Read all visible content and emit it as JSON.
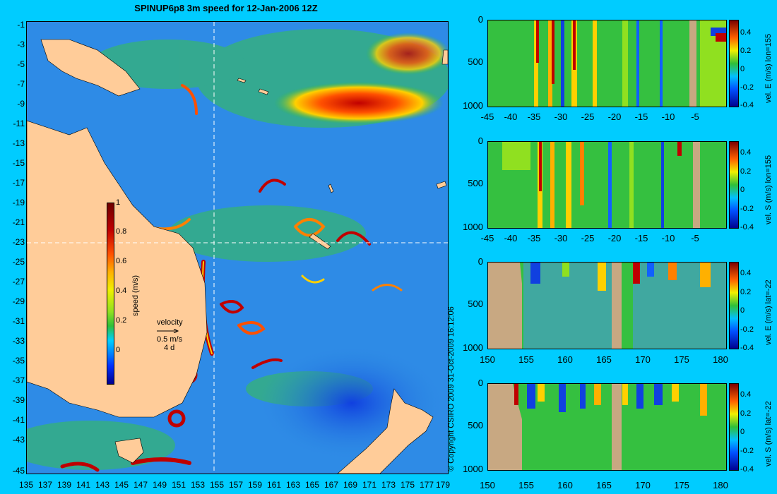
{
  "title": "SPINUP6p8 3m speed for 12-Jan-2006 12Z",
  "copyright": "© Copyright CSIRO 2009    31-Oct-2009 16:12:06",
  "map": {
    "lat_ticks": [
      "-1",
      "-3",
      "-5",
      "-7",
      "-9",
      "-11",
      "-13",
      "-15",
      "-17",
      "-19",
      "-21",
      "-23",
      "-25",
      "-27",
      "-29",
      "-31",
      "-33",
      "-35",
      "-37",
      "-39",
      "-41",
      "-43",
      "-45"
    ],
    "lon_ticks": [
      "135",
      "137",
      "139",
      "141",
      "143",
      "145",
      "147",
      "149",
      "151",
      "153",
      "155",
      "157",
      "159",
      "161",
      "163",
      "165",
      "167",
      "169",
      "171",
      "173",
      "175",
      "177",
      "179"
    ],
    "speed_colorbar": {
      "title": "speed (m/s)",
      "ticks": [
        "1",
        "0.8",
        "0.6",
        "0.4",
        "0.2",
        "0"
      ]
    },
    "velocity_legend": {
      "line1": "velocity",
      "line2": "0.5 m/s",
      "line3": "4 d"
    },
    "colors": {
      "land": "#ffcc99",
      "background": "#00ccff"
    }
  },
  "panels": [
    {
      "label": "vel. E (m/s) lon=155",
      "x_ticks": [
        "-45",
        "-40",
        "-35",
        "-30",
        "-25",
        "-20",
        "-15",
        "-10",
        "-5"
      ],
      "y_ticks": [
        "0",
        "500",
        "1000"
      ],
      "cbar_ticks": [
        "0.4",
        "0.2",
        "0",
        "-0.2",
        "-0.4"
      ]
    },
    {
      "label": "vel. S (m/s) lon=155",
      "x_ticks": [
        "-45",
        "-40",
        "-35",
        "-30",
        "-25",
        "-20",
        "-15",
        "-10",
        "-5"
      ],
      "y_ticks": [
        "0",
        "500",
        "1000"
      ],
      "cbar_ticks": [
        "0.4",
        "0.2",
        "0",
        "-0.2",
        "-0.4"
      ]
    },
    {
      "label": "vel. E (m/s) lat=-22",
      "x_ticks": [
        "150",
        "155",
        "160",
        "165",
        "170",
        "175",
        "180"
      ],
      "y_ticks": [
        "0",
        "500",
        "1000"
      ],
      "cbar_ticks": [
        "0.4",
        "0.2",
        "0",
        "-0.2",
        "-0.4"
      ]
    },
    {
      "label": "vel. S (m/s) lat=-22",
      "x_ticks": [
        "150",
        "155",
        "160",
        "165",
        "170",
        "175",
        "180"
      ],
      "y_ticks": [
        "0",
        "500",
        "1000"
      ],
      "cbar_ticks": [
        "0.4",
        "0.2",
        "0",
        "-0.2",
        "-0.4"
      ]
    }
  ]
}
